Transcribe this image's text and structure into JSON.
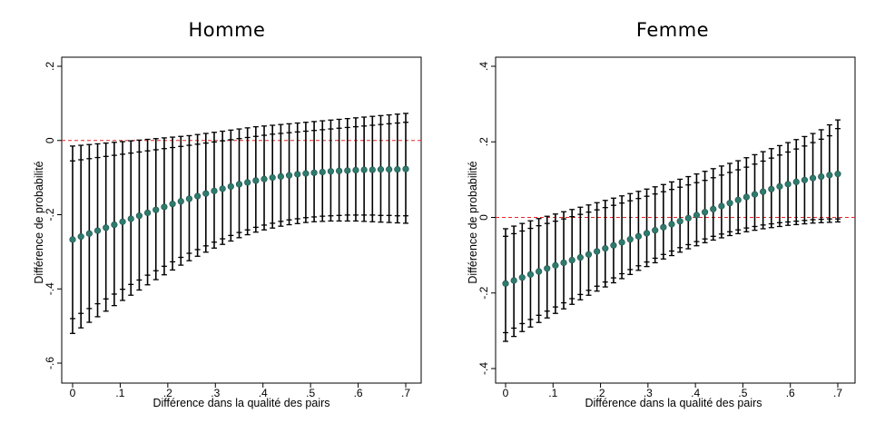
{
  "chart_data": [
    {
      "type": "scatter",
      "title": "Homme",
      "xlabel": "Différence dans la qualité des pairs",
      "ylabel": "Différence de probabilité",
      "xlim": [
        0,
        0.7
      ],
      "ylim": [
        -0.6,
        0.2
      ],
      "xticks": [
        0,
        0.1,
        0.2,
        0.3,
        0.4,
        0.5,
        0.6,
        0.7
      ],
      "xtick_labels": [
        "0",
        ".1",
        ".2",
        ".3",
        ".4",
        ".5",
        ".6",
        ".7"
      ],
      "yticks": [
        -0.6,
        -0.4,
        -0.2,
        0,
        0.2
      ],
      "ytick_labels": [
        "-.6",
        "-.4",
        "-.2",
        "0",
        ".2"
      ],
      "reference_line": {
        "y": 0,
        "color": "#e8262a",
        "style": "dashed"
      },
      "marker_color": "#2e7b6e",
      "grid": false,
      "x": [
        0,
        0.0175,
        0.035,
        0.0525,
        0.07,
        0.0875,
        0.105,
        0.1225,
        0.14,
        0.1575,
        0.175,
        0.1925,
        0.21,
        0.2275,
        0.245,
        0.2625,
        0.28,
        0.2975,
        0.315,
        0.3325,
        0.35,
        0.3675,
        0.385,
        0.4025,
        0.42,
        0.4375,
        0.455,
        0.4725,
        0.49,
        0.5075,
        0.525,
        0.5425,
        0.56,
        0.5775,
        0.595,
        0.6125,
        0.63,
        0.6475,
        0.665,
        0.6825,
        0.7
      ],
      "series": [
        {
          "label_role": "point_estimate",
          "values": [
            -0.267,
            -0.259,
            -0.251,
            -0.243,
            -0.235,
            -0.227,
            -0.219,
            -0.211,
            -0.203,
            -0.195,
            -0.187,
            -0.179,
            -0.171,
            -0.164,
            -0.157,
            -0.15,
            -0.143,
            -0.136,
            -0.13,
            -0.124,
            -0.118,
            -0.113,
            -0.108,
            -0.104,
            -0.1,
            -0.097,
            -0.094,
            -0.091,
            -0.089,
            -0.087,
            -0.085,
            -0.083,
            -0.082,
            -0.081,
            -0.08,
            -0.079,
            -0.079,
            -0.078,
            -0.078,
            -0.078,
            -0.077
          ]
        },
        {
          "label_role": "inner_upper",
          "values": [
            -0.055,
            -0.052,
            -0.049,
            -0.046,
            -0.043,
            -0.04,
            -0.037,
            -0.034,
            -0.031,
            -0.028,
            -0.025,
            -0.022,
            -0.019,
            -0.016,
            -0.013,
            -0.01,
            -0.007,
            -0.004,
            -0.001,
            0.002,
            0.005,
            0.008,
            0.011,
            0.014,
            0.017,
            0.019,
            0.021,
            0.023,
            0.025,
            0.027,
            0.029,
            0.031,
            0.033,
            0.035,
            0.037,
            0.039,
            0.041,
            0.043,
            0.045,
            0.047,
            0.049
          ]
        },
        {
          "label_role": "inner_lower",
          "values": [
            -0.48,
            -0.466,
            -0.453,
            -0.44,
            -0.427,
            -0.414,
            -0.401,
            -0.388,
            -0.376,
            -0.363,
            -0.351,
            -0.339,
            -0.327,
            -0.315,
            -0.304,
            -0.294,
            -0.284,
            -0.274,
            -0.265,
            -0.256,
            -0.248,
            -0.241,
            -0.234,
            -0.228,
            -0.223,
            -0.218,
            -0.214,
            -0.211,
            -0.208,
            -0.206,
            -0.204,
            -0.203,
            -0.202,
            -0.201,
            -0.201,
            -0.201,
            -0.201,
            -0.202,
            -0.202,
            -0.203,
            -0.203
          ]
        },
        {
          "label_role": "outer_upper",
          "values": [
            -0.015,
            -0.013,
            -0.011,
            -0.009,
            -0.007,
            -0.005,
            -0.003,
            -0.001,
            0.001,
            0.003,
            0.005,
            0.007,
            0.009,
            0.011,
            0.013,
            0.016,
            0.019,
            0.022,
            0.025,
            0.028,
            0.031,
            0.034,
            0.037,
            0.039,
            0.041,
            0.043,
            0.045,
            0.047,
            0.049,
            0.051,
            0.053,
            0.055,
            0.057,
            0.059,
            0.061,
            0.063,
            0.065,
            0.067,
            0.069,
            0.071,
            0.073
          ]
        },
        {
          "label_role": "outer_lower",
          "values": [
            -0.52,
            -0.505,
            -0.49,
            -0.475,
            -0.46,
            -0.445,
            -0.431,
            -0.417,
            -0.403,
            -0.389,
            -0.375,
            -0.362,
            -0.349,
            -0.336,
            -0.324,
            -0.312,
            -0.301,
            -0.29,
            -0.28,
            -0.271,
            -0.262,
            -0.254,
            -0.247,
            -0.241,
            -0.236,
            -0.231,
            -0.227,
            -0.224,
            -0.221,
            -0.219,
            -0.218,
            -0.217,
            -0.217,
            -0.217,
            -0.217,
            -0.218,
            -0.219,
            -0.22,
            -0.221,
            -0.222,
            -0.223
          ]
        }
      ]
    },
    {
      "type": "scatter",
      "title": "Femme",
      "xlabel": "Différence dans la qualité des pairs",
      "ylabel": "Différence de probabilité",
      "xlim": [
        0,
        0.7
      ],
      "ylim": [
        -0.4,
        0.4
      ],
      "xticks": [
        0,
        0.1,
        0.2,
        0.3,
        0.4,
        0.5,
        0.6,
        0.7
      ],
      "xtick_labels": [
        "0",
        ".1",
        ".2",
        ".3",
        ".4",
        ".5",
        ".6",
        ".7"
      ],
      "yticks": [
        -0.4,
        -0.2,
        0,
        0.2,
        0.4
      ],
      "ytick_labels": [
        "-.4",
        "-.2",
        "0",
        ".2",
        ".4"
      ],
      "reference_line": {
        "y": 0,
        "color": "#e8262a",
        "style": "dashed"
      },
      "marker_color": "#2e7b6e",
      "grid": false,
      "x": [
        0,
        0.0175,
        0.035,
        0.0525,
        0.07,
        0.0875,
        0.105,
        0.1225,
        0.14,
        0.1575,
        0.175,
        0.1925,
        0.21,
        0.2275,
        0.245,
        0.2625,
        0.28,
        0.2975,
        0.315,
        0.3325,
        0.35,
        0.3675,
        0.385,
        0.4025,
        0.42,
        0.4375,
        0.455,
        0.4725,
        0.49,
        0.5075,
        0.525,
        0.5425,
        0.56,
        0.5775,
        0.595,
        0.6125,
        0.63,
        0.6475,
        0.665,
        0.6825,
        0.7
      ],
      "series": [
        {
          "label_role": "point_estimate",
          "values": [
            -0.175,
            -0.167,
            -0.159,
            -0.151,
            -0.143,
            -0.135,
            -0.127,
            -0.12,
            -0.113,
            -0.106,
            -0.098,
            -0.09,
            -0.082,
            -0.074,
            -0.066,
            -0.058,
            -0.05,
            -0.042,
            -0.034,
            -0.026,
            -0.018,
            -0.01,
            -0.002,
            0.006,
            0.014,
            0.022,
            0.03,
            0.038,
            0.046,
            0.054,
            0.061,
            0.068,
            0.075,
            0.082,
            0.088,
            0.094,
            0.099,
            0.104,
            0.108,
            0.112,
            0.115
          ]
        },
        {
          "label_role": "inner_upper",
          "values": [
            -0.05,
            -0.043,
            -0.036,
            -0.029,
            -0.022,
            -0.016,
            -0.01,
            -0.004,
            0.002,
            0.008,
            0.014,
            0.02,
            0.026,
            0.032,
            0.038,
            0.044,
            0.05,
            0.056,
            0.062,
            0.068,
            0.074,
            0.08,
            0.086,
            0.092,
            0.098,
            0.105,
            0.112,
            0.119,
            0.126,
            0.133,
            0.141,
            0.149,
            0.157,
            0.165,
            0.173,
            0.181,
            0.189,
            0.198,
            0.207,
            0.216,
            0.235
          ]
        },
        {
          "label_role": "inner_lower",
          "values": [
            -0.305,
            -0.293,
            -0.281,
            -0.27,
            -0.259,
            -0.248,
            -0.237,
            -0.226,
            -0.215,
            -0.204,
            -0.193,
            -0.182,
            -0.171,
            -0.16,
            -0.149,
            -0.138,
            -0.128,
            -0.118,
            -0.108,
            -0.098,
            -0.089,
            -0.08,
            -0.072,
            -0.064,
            -0.057,
            -0.05,
            -0.044,
            -0.038,
            -0.033,
            -0.028,
            -0.024,
            -0.02,
            -0.017,
            -0.014,
            -0.012,
            -0.01,
            -0.008,
            -0.006,
            -0.005,
            -0.004,
            -0.004
          ]
        },
        {
          "label_role": "outer_upper",
          "values": [
            -0.03,
            -0.023,
            -0.016,
            -0.009,
            -0.003,
            0.003,
            0.009,
            0.015,
            0.021,
            0.027,
            0.033,
            0.039,
            0.045,
            0.051,
            0.057,
            0.063,
            0.069,
            0.075,
            0.081,
            0.087,
            0.094,
            0.101,
            0.108,
            0.115,
            0.122,
            0.129,
            0.136,
            0.143,
            0.15,
            0.158,
            0.166,
            0.174,
            0.182,
            0.19,
            0.198,
            0.206,
            0.214,
            0.222,
            0.232,
            0.245,
            0.258
          ]
        },
        {
          "label_role": "outer_lower",
          "values": [
            -0.328,
            -0.315,
            -0.302,
            -0.29,
            -0.278,
            -0.266,
            -0.254,
            -0.242,
            -0.23,
            -0.218,
            -0.206,
            -0.195,
            -0.184,
            -0.173,
            -0.162,
            -0.151,
            -0.14,
            -0.13,
            -0.12,
            -0.11,
            -0.101,
            -0.092,
            -0.083,
            -0.075,
            -0.067,
            -0.06,
            -0.054,
            -0.048,
            -0.043,
            -0.038,
            -0.034,
            -0.03,
            -0.027,
            -0.024,
            -0.021,
            -0.019,
            -0.017,
            -0.015,
            -0.014,
            -0.013,
            -0.012
          ]
        }
      ]
    }
  ]
}
